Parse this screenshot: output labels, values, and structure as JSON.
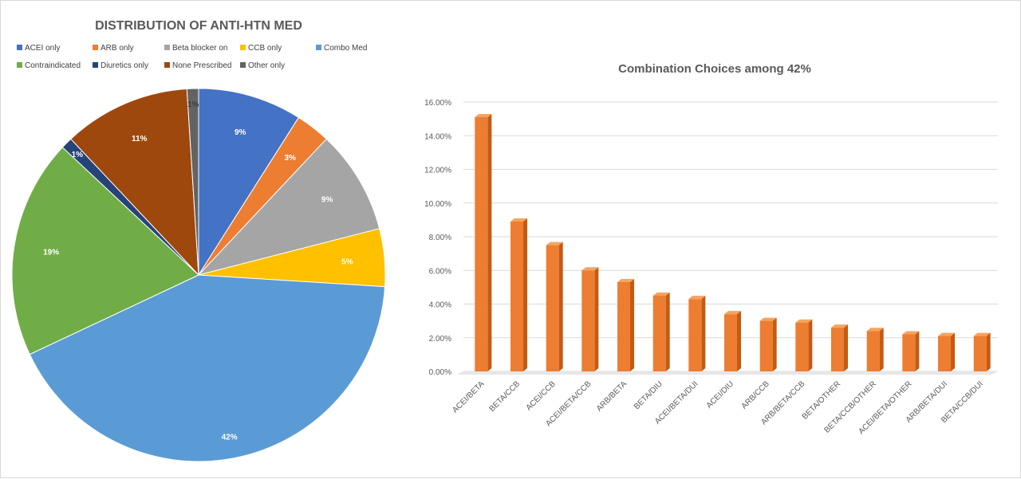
{
  "chart_data": [
    {
      "type": "pie",
      "title": "DISTRIBUTION OF ANTI-HTN MED",
      "legend_position": "top",
      "categories": [
        "ACEI only",
        "ARB only",
        "Beta blocker on",
        "CCB only",
        "Combo Med",
        "Contraindicated",
        "Diuretics only",
        "None Prescribed",
        "Other only"
      ],
      "values": [
        9,
        3,
        9,
        5,
        42,
        19,
        1,
        11,
        1
      ],
      "labels": [
        "9%",
        "3%",
        "9%",
        "5%",
        "42%",
        "19%",
        "1%",
        "11%",
        "1%"
      ],
      "colors": [
        "#4472C4",
        "#ED7D31",
        "#A5A5A5",
        "#FFC000",
        "#5B9BD5",
        "#70AD47",
        "#264478",
        "#9E480E",
        "#636363"
      ],
      "label_colors": [
        "#ffffff",
        "#ffffff",
        "#ffffff",
        "#ffffff",
        "#ffffff",
        "#ffffff",
        "#ffffff",
        "#ffffff",
        "#404040"
      ]
    },
    {
      "type": "bar",
      "title": "Combination Choices among 42%",
      "categories": [
        "ACEI/BETA",
        "BETA/CCB",
        "ACEI/CCB",
        "ACEI/BETA/CCB",
        "ARB/BETA",
        "BETA/DIU",
        "ACEI/BETA/DUI",
        "ACEI/DIU",
        "ARB/CCB",
        "ARB/BETA/CCB",
        "BETA/OTHER",
        "BETA/CCB/OTHER",
        "ACEI/BETA/OTHER",
        "ARB/BETA/DUI",
        "BETA/CCB/DUI"
      ],
      "values": [
        15.1,
        8.9,
        7.5,
        6.0,
        5.3,
        4.5,
        4.3,
        3.4,
        3.0,
        2.9,
        2.6,
        2.4,
        2.2,
        2.1,
        2.1
      ],
      "ylim": [
        0,
        16
      ],
      "yticks": [
        "0.00%",
        "2.00%",
        "4.00%",
        "6.00%",
        "8.00%",
        "10.00%",
        "12.00%",
        "14.00%",
        "16.00%"
      ],
      "grid": true,
      "color": "#ED7D31",
      "color_side": "#C55A11",
      "color_top": "#F4A460"
    }
  ]
}
